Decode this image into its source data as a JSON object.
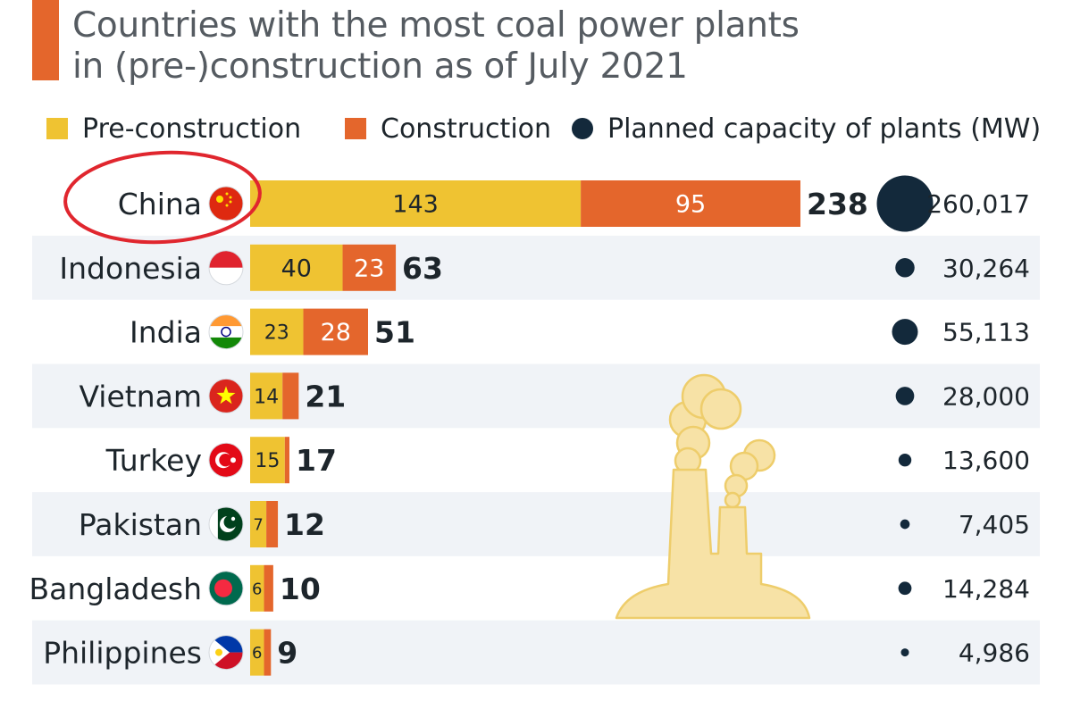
{
  "title": {
    "line1": "Countries with the most coal power plants",
    "line2": "in (pre-)construction as of July 2021"
  },
  "legend": {
    "pre_construction": "Pre-construction",
    "construction": "Construction",
    "capacity": "Planned capacity of plants (MW)"
  },
  "colors": {
    "accent": "#e4662c",
    "pre_construction": "#efc332",
    "construction": "#e4662c",
    "capacity_dot": "#13293b",
    "row_stripe": "#f0f3f7",
    "highlight_circle": "#e0262e",
    "illustration_fill": "#f7e2a6",
    "illustration_stroke": "#eecd6b"
  },
  "icons": {
    "highlight": "red-circle-highlight-icon",
    "illustration": "coal-power-plant-smokestack-icon"
  },
  "chart_data": {
    "type": "bar",
    "stacked": true,
    "orientation": "horizontal",
    "categories": [
      "China",
      "Indonesia",
      "India",
      "Vietnam",
      "Turkey",
      "Pakistan",
      "Bangladesh",
      "Philippines"
    ],
    "flags": [
      "china-flag-icon",
      "indonesia-flag-icon",
      "india-flag-icon",
      "vietnam-flag-icon",
      "turkey-flag-icon",
      "pakistan-flag-icon",
      "bangladesh-flag-icon",
      "philippines-flag-icon"
    ],
    "series": [
      {
        "name": "Pre-construction",
        "values": [
          143,
          40,
          23,
          14,
          15,
          7,
          6,
          6
        ]
      },
      {
        "name": "Construction",
        "values": [
          95,
          23,
          28,
          7,
          2,
          5,
          4,
          3
        ]
      }
    ],
    "totals": [
      238,
      63,
      51,
      21,
      17,
      12,
      10,
      9
    ],
    "segment_labels": [
      [
        "143",
        "95"
      ],
      [
        "40",
        "23"
      ],
      [
        "23",
        "28"
      ],
      [
        "14",
        ""
      ],
      [
        "15",
        ""
      ],
      [
        "7",
        ""
      ],
      [
        "6",
        ""
      ],
      [
        "6",
        ""
      ]
    ],
    "capacity": {
      "name": "Planned capacity of plants (MW)",
      "values": [
        260017,
        30264,
        55113,
        28000,
        13600,
        7405,
        14284,
        4986
      ],
      "labels": [
        "260,017",
        "30,264",
        "55,113",
        "28,000",
        "13,600",
        "7,405",
        "14,284",
        "4,986"
      ]
    },
    "highlighted_category": "China",
    "legend_position": "top",
    "grid": false
  }
}
